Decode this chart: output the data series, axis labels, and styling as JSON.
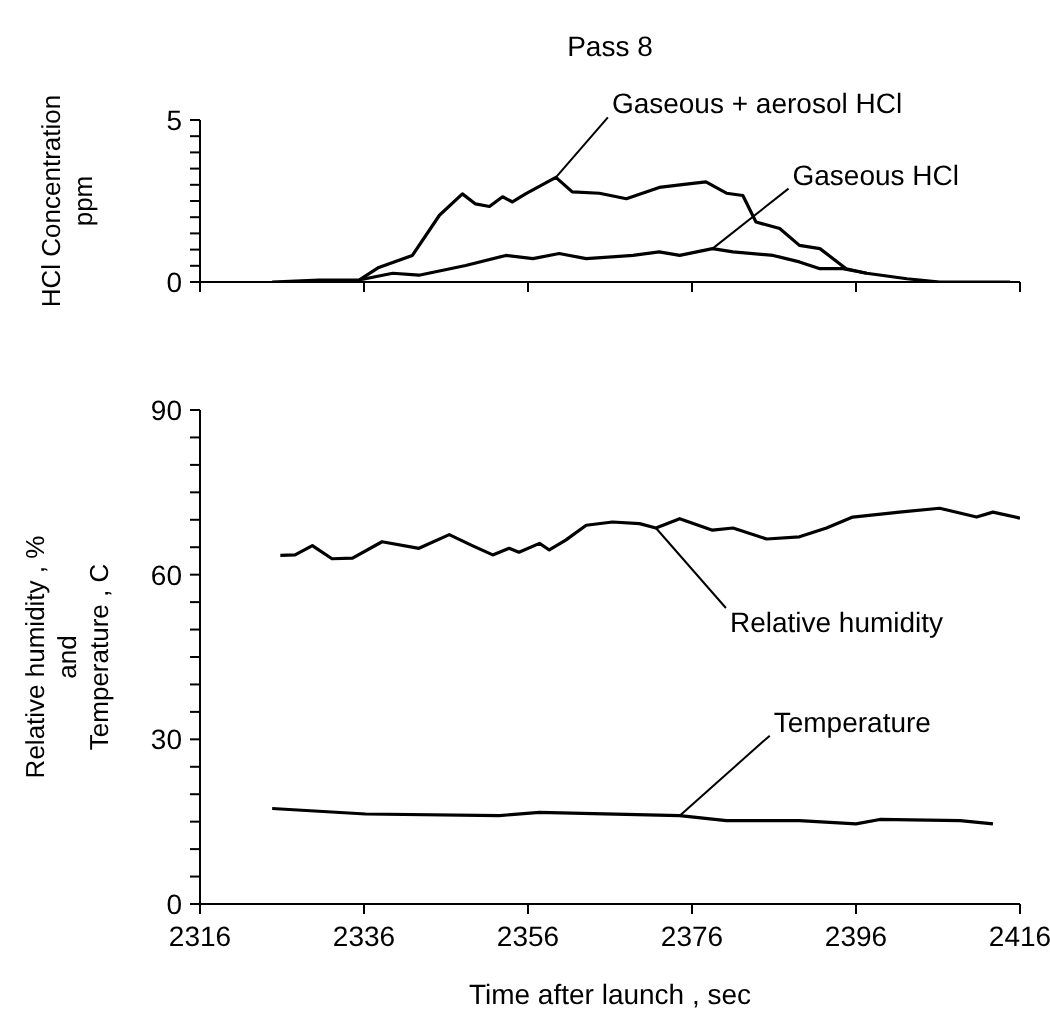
{
  "chart_data": [
    {
      "type": "line",
      "title": "Pass 8",
      "ylabel": "HCl Concentration\nppm",
      "xlim": [
        2316,
        2416
      ],
      "ylim": [
        0,
        5
      ],
      "tick_labels": "y",
      "marker": "none",
      "line_style": "solid",
      "yticks": [
        0,
        {
          "value": 0.5,
          "label": null
        },
        {
          "value": 1,
          "label": null
        },
        {
          "value": 1.5,
          "label": null
        },
        {
          "value": 2,
          "label": null
        },
        {
          "value": 2.5,
          "label": null
        },
        {
          "value": 3,
          "label": null
        },
        {
          "value": 3.5,
          "label": null
        },
        {
          "value": 4,
          "label": null
        },
        {
          "value": 4.5,
          "label": null
        },
        5
      ],
      "xticks": [
        2316,
        2336,
        2356,
        2376,
        2396,
        2416
      ],
      "series": [
        {
          "name": "Gaseous + aerosol HCl",
          "color": "#000000",
          "x": [
            2324.8,
            2330.5,
            2335.4,
            2337.8,
            2341.9,
            2345.2,
            2348.0,
            2349.6,
            2351.3,
            2352.9,
            2354.1,
            2355.7,
            2359.4,
            2361.4,
            2364.7,
            2368.0,
            2372.0,
            2375.3,
            2377.7,
            2380.2,
            2382.2,
            2383.8,
            2386.7,
            2389.1,
            2391.6,
            2394.8,
            2397.3,
            2402.2,
            2406.2,
            2410.3,
            2414.8
          ],
          "values": [
            0,
            0.06,
            0.06,
            0.45,
            0.82,
            2.06,
            2.72,
            2.41,
            2.33,
            2.63,
            2.47,
            2.72,
            3.23,
            2.78,
            2.74,
            2.57,
            2.92,
            3.02,
            3.09,
            2.74,
            2.67,
            1.85,
            1.65,
            1.13,
            1.03,
            0.41,
            0.27,
            0.1,
            0,
            0,
            0
          ]
        },
        {
          "name": "Gaseous HCl",
          "color": "#000000",
          "x": [
            2335.4,
            2339.5,
            2342.7,
            2348.4,
            2353.3,
            2356.6,
            2359.8,
            2363.1,
            2368.8,
            2372.0,
            2374.5,
            2378.5,
            2381.0,
            2385.9,
            2389.1,
            2391.6,
            2394.4,
            2397.3
          ],
          "values": [
            0.06,
            0.27,
            0.21,
            0.51,
            0.82,
            0.72,
            0.88,
            0.72,
            0.82,
            0.93,
            0.82,
            1.03,
            0.93,
            0.82,
            0.62,
            0.41,
            0.41,
            0.27
          ]
        }
      ]
    },
    {
      "type": "line",
      "xlabel": "Time after launch , sec",
      "ylabel": "Relative humidity , %\nand\nTemperature , C",
      "xlim": [
        2316,
        2416
      ],
      "ylim": [
        0,
        90
      ],
      "marker": "none",
      "line_style": "solid",
      "yticks": [
        0,
        {
          "value": 5,
          "label": null
        },
        {
          "value": 10,
          "label": null
        },
        {
          "value": 15,
          "label": null
        },
        {
          "value": 20,
          "label": null
        },
        {
          "value": 25,
          "label": null
        },
        30,
        {
          "value": 35,
          "label": null
        },
        {
          "value": 40,
          "label": null
        },
        {
          "value": 45,
          "label": null
        },
        {
          "value": 50,
          "label": null
        },
        {
          "value": 55,
          "label": null
        },
        60,
        {
          "value": 65,
          "label": null
        },
        {
          "value": 70,
          "label": null
        },
        {
          "value": 75,
          "label": null
        },
        {
          "value": 80,
          "label": null
        },
        {
          "value": 85,
          "label": null
        },
        90
      ],
      "xticks": [
        2316,
        2336,
        2356,
        2376,
        2396,
        2416
      ],
      "series": [
        {
          "name": "Relative humidity",
          "color": "#000000",
          "x": [
            2325.8,
            2327.6,
            2329.7,
            2332.1,
            2334.6,
            2338.2,
            2342.7,
            2346.4,
            2349.2,
            2351.7,
            2353.7,
            2354.9,
            2357.4,
            2358.6,
            2360.6,
            2363.1,
            2366.3,
            2369.6,
            2371.6,
            2374.5,
            2378.5,
            2381.0,
            2385.1,
            2389.1,
            2392.4,
            2395.6,
            2401.3,
            2406.2,
            2410.7,
            2412.7,
            2416
          ],
          "values": [
            63.5,
            63.6,
            65.3,
            62.9,
            63.0,
            66.0,
            64.8,
            67.3,
            65.3,
            63.6,
            64.8,
            64.1,
            65.7,
            64.5,
            66.3,
            69.0,
            69.6,
            69.3,
            68.5,
            70.2,
            68.1,
            68.5,
            66.5,
            66.9,
            68.5,
            70.5,
            71.4,
            72.1,
            70.5,
            71.4,
            70.3
          ]
        },
        {
          "name": "Temperature",
          "color": "#000000",
          "x": [
            2324.8,
            2336.2,
            2352.5,
            2357.4,
            2374.5,
            2380.2,
            2389.1,
            2396.0,
            2398.9,
            2408.7,
            2412.7
          ],
          "values": [
            17.4,
            16.4,
            16.1,
            16.7,
            16.1,
            15.2,
            15.2,
            14.6,
            15.4,
            15.2,
            14.6
          ]
        }
      ]
    }
  ]
}
